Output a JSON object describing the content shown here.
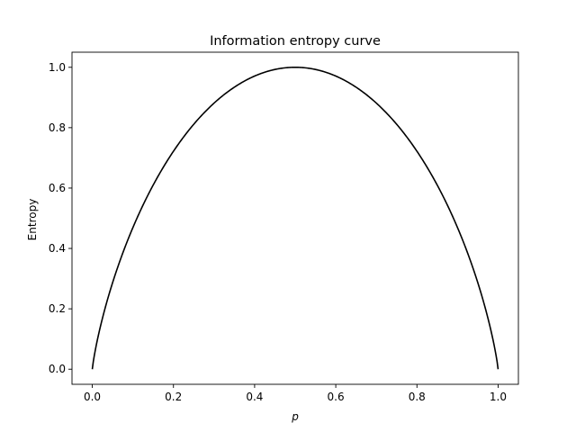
{
  "chart_data": {
    "type": "line",
    "title": "Information entropy curve",
    "xlabel": "p",
    "ylabel": "Entropy",
    "xlim": [
      -0.05,
      1.05
    ],
    "ylim": [
      -0.05,
      1.05
    ],
    "xticks": [
      0.0,
      0.2,
      0.4,
      0.6,
      0.8,
      1.0
    ],
    "xtick_labels": [
      "0.0",
      "0.2",
      "0.4",
      "0.6",
      "0.8",
      "1.0"
    ],
    "yticks": [
      0.0,
      0.2,
      0.4,
      0.6,
      0.8,
      1.0
    ],
    "ytick_labels": [
      "0.0",
      "0.2",
      "0.4",
      "0.6",
      "0.8",
      "1.0"
    ],
    "grid": false,
    "series": [
      {
        "color": "#000000",
        "x": [
          0.0,
          0.01,
          0.02,
          0.05,
          0.1,
          0.15,
          0.2,
          0.25,
          0.3,
          0.35,
          0.4,
          0.45,
          0.5,
          0.55,
          0.6,
          0.65,
          0.7,
          0.75,
          0.8,
          0.85,
          0.9,
          0.95,
          0.98,
          0.99,
          1.0
        ],
        "y": [
          0.0,
          0.081,
          0.141,
          0.286,
          0.469,
          0.61,
          0.722,
          0.811,
          0.881,
          0.934,
          0.971,
          0.993,
          1.0,
          0.993,
          0.971,
          0.934,
          0.881,
          0.811,
          0.722,
          0.61,
          0.469,
          0.286,
          0.141,
          0.081,
          0.0
        ]
      }
    ]
  }
}
